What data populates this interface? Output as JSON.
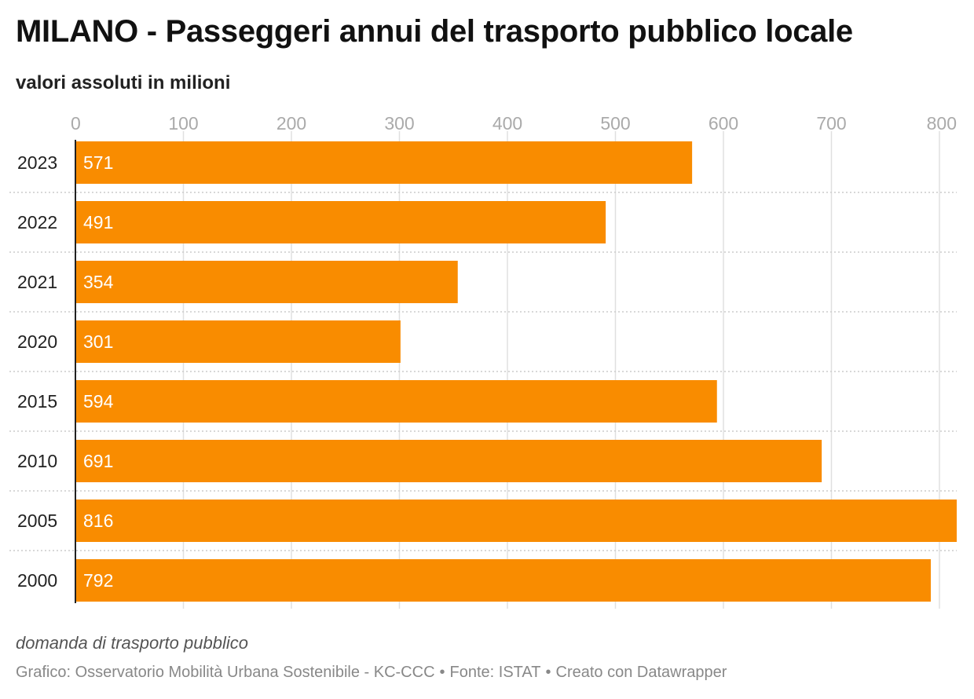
{
  "header": {
    "title": "MILANO - Passeggeri annui del trasporto pubblico locale",
    "subtitle": "valori assoluti in milioni"
  },
  "notes": {
    "description": "domanda di trasporto pubblico",
    "credit": "Grafico: Osservatorio Mobilità Urbana Sostenibile - KC-CCC",
    "source": "Fonte: ISTAT",
    "tool": "Creato con Datawrapper",
    "separator": "•"
  },
  "colors": {
    "bar": "#F98C00",
    "bar_label": "#ffffff",
    "grid": "#e0e0e0",
    "row_divider": "#cccccc",
    "tick": "#aaaaaa",
    "axis": "#222222"
  },
  "chart_data": {
    "type": "bar",
    "orientation": "horizontal",
    "title": "MILANO - Passeggeri annui del trasporto pubblico locale",
    "subtitle": "valori assoluti in milioni",
    "categories": [
      "2023",
      "2022",
      "2021",
      "2020",
      "2015",
      "2010",
      "2005",
      "2000"
    ],
    "values": [
      571,
      491,
      354,
      301,
      594,
      691,
      816,
      792
    ],
    "xlim": [
      0,
      816
    ],
    "x_ticks": [
      0,
      100,
      200,
      300,
      400,
      500,
      600,
      700,
      800
    ],
    "grid": true,
    "data_labels": true,
    "legend": "none"
  }
}
